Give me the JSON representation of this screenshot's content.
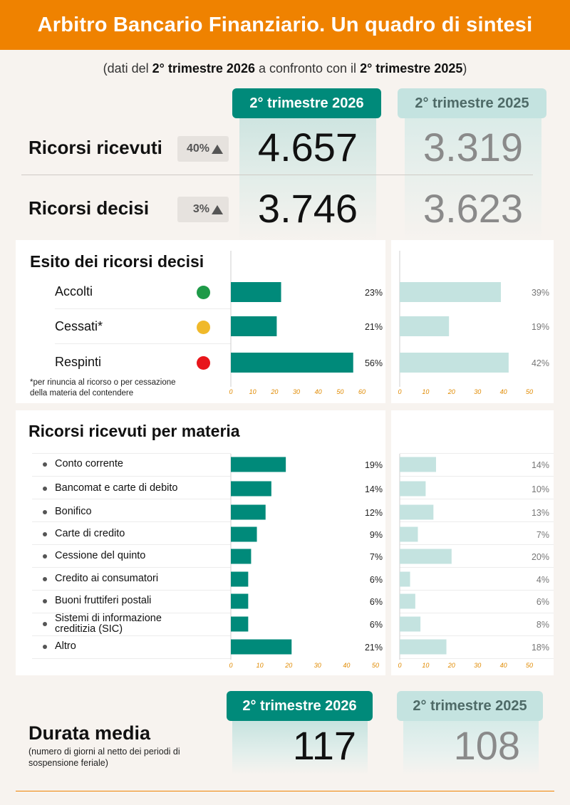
{
  "header": {
    "title": "Arbitro Bancario Finanziario. Un quadro di sintesi"
  },
  "subtitle": {
    "part1": "(dati del ",
    "cur": "2° trimestre 2026",
    "part2": " a confronto con il ",
    "prev": "2° trimestre  2025",
    "part3": ")"
  },
  "periods": {
    "current": "2° trimestre 2026",
    "previous": "2° trimestre 2025"
  },
  "summary": {
    "ricevuti": {
      "label": "Ricorsi ricevuti",
      "change": "40%",
      "current": "4.657",
      "previous": "3.319"
    },
    "decisi": {
      "label": "Ricorsi decisi",
      "change": "3%",
      "current": "3.746",
      "previous": "3.623"
    }
  },
  "colors": {
    "current": "#008a7a",
    "previous": "#c4e3e0",
    "accent": "#ef8200",
    "axis_tick": "#e08a00",
    "green": "#1e9a48",
    "yellow": "#f0b92a",
    "red": "#e8161b"
  },
  "esito": {
    "title": "Esito dei ricorsi decisi",
    "note_line1": "*per rinuncia al ricorso o per cessazione",
    "note_line2": "della materia del contendere"
  },
  "materia": {
    "title": "Ricorsi ricevuti per materia"
  },
  "chart_data": [
    {
      "type": "bar",
      "title": "Esito dei ricorsi decisi",
      "categories": [
        "Accolti",
        "Cessati*",
        "Respinti"
      ],
      "category_colors": [
        "#1e9a48",
        "#f0b92a",
        "#e8161b"
      ],
      "series": [
        {
          "name": "2° trimestre 2026",
          "values": [
            23,
            21,
            56
          ],
          "labels": [
            "23%",
            "21%",
            "56%"
          ],
          "xlim": [
            0,
            60
          ],
          "ticks": [
            "0",
            "10",
            "20",
            "30",
            "40",
            "50",
            "60"
          ]
        },
        {
          "name": "2° trimestre 2025",
          "values": [
            39,
            19,
            42
          ],
          "labels": [
            "39%",
            "19%",
            "42%"
          ],
          "xlim": [
            0,
            50
          ],
          "ticks": [
            "0",
            "10",
            "20",
            "30",
            "40",
            "50"
          ]
        }
      ]
    },
    {
      "type": "bar",
      "title": "Ricorsi ricevuti per materia",
      "categories": [
        "Conto corrente",
        "Bancomat e carte di debito",
        "Bonifico",
        "Carte di credito",
        "Cessione del quinto",
        "Credito ai consumatori",
        "Buoni fruttiferi postali",
        "Sistemi di informazione creditizia (SIC)",
        "Altro"
      ],
      "category_lines": [
        [
          "Conto corrente"
        ],
        [
          "Bancomat e carte di debito"
        ],
        [
          "Bonifico"
        ],
        [
          "Carte di credito"
        ],
        [
          "Cessione del quinto"
        ],
        [
          "Credito ai consumatori"
        ],
        [
          "Buoni fruttiferi postali"
        ],
        [
          "Sistemi di informazione",
          "creditizia (SIC)"
        ],
        [
          "Altro"
        ]
      ],
      "series": [
        {
          "name": "2° trimestre 2026",
          "values": [
            19,
            14,
            12,
            9,
            7,
            6,
            6,
            6,
            21
          ],
          "labels": [
            "19%",
            "14%",
            "12%",
            "9%",
            "7%",
            "6%",
            "6%",
            "6%",
            "21%"
          ],
          "xlim": [
            0,
            50
          ],
          "ticks": [
            "0",
            "10",
            "20",
            "30",
            "40",
            "50"
          ]
        },
        {
          "name": "2° trimestre 2025",
          "values": [
            14,
            10,
            13,
            7,
            20,
            4,
            6,
            8,
            18
          ],
          "labels": [
            "14%",
            "10%",
            "13%",
            "7%",
            "20%",
            "4%",
            "6%",
            "8%",
            "18%"
          ],
          "xlim": [
            0,
            50
          ],
          "ticks": [
            "0",
            "10",
            "20",
            "30",
            "40",
            "50"
          ]
        }
      ]
    }
  ],
  "durata": {
    "title": "Durata media",
    "note_line1": "(numero di giorni al netto dei periodi di",
    "note_line2": "sospensione feriale)",
    "current": "117",
    "previous": "108"
  }
}
